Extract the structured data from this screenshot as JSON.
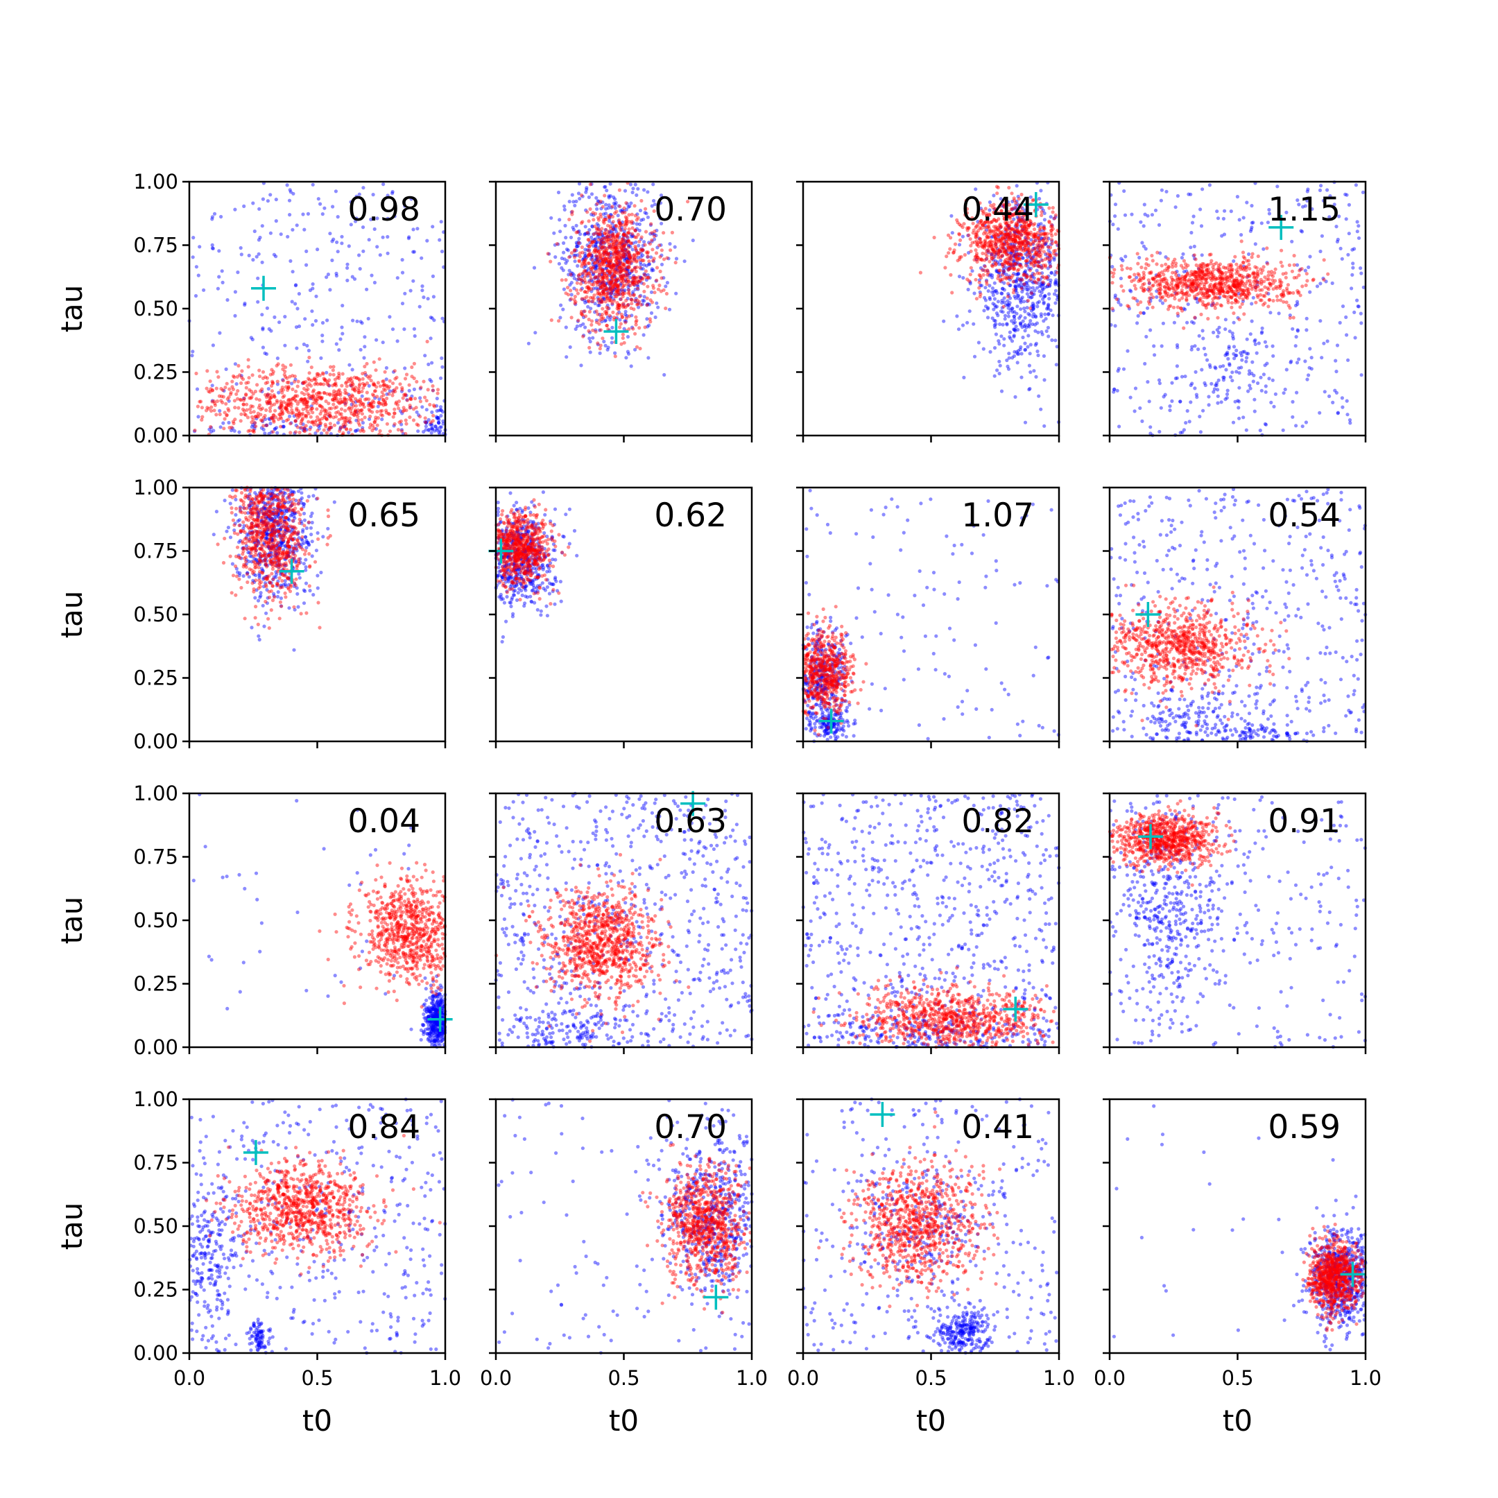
{
  "colors": {
    "series_blue": "#0000ff",
    "series_red": "#ff0000",
    "marker_cyan": "#00bfbf",
    "frame": "#000000"
  },
  "chart_data": {
    "type": "scatter",
    "layout": "4x4 grid of scatter panels with shared axes",
    "xlabel": "t0",
    "ylabel": "tau",
    "xlim": [
      0,
      1
    ],
    "ylim": [
      0,
      1
    ],
    "xticks": [
      "0.0",
      "0.5",
      "1.0"
    ],
    "yticks": [
      "0.00",
      "0.25",
      "0.50",
      "0.75",
      "1.00"
    ],
    "grid": false,
    "legend": "none",
    "annotation_position": "top-right",
    "series": [
      {
        "color": "#0000ff",
        "marker": "dot",
        "alpha": 0.4
      },
      {
        "color": "#ff0000",
        "marker": "dot",
        "alpha": 0.4
      }
    ],
    "panels": [
      {
        "annotation": "0.98",
        "truth": [
          0.29,
          0.58
        ],
        "blue": [
          {
            "cx": 0.55,
            "cy": 0.5,
            "sx": 0.3,
            "sy": 0.3,
            "n": 340,
            "uniform": true
          },
          {
            "cx": 0.97,
            "cy": 0.04,
            "sx": 0.03,
            "sy": 0.04,
            "n": 60
          },
          {
            "cx": 0.3,
            "cy": 0.03,
            "sx": 0.18,
            "sy": 0.02,
            "n": 70
          }
        ],
        "red": [
          {
            "cx": 0.5,
            "cy": 0.13,
            "sx": 0.26,
            "sy": 0.07,
            "n": 900,
            "xmin": 0.02,
            "xmax": 0.98
          }
        ]
      },
      {
        "annotation": "0.70",
        "truth": [
          0.47,
          0.41
        ],
        "blue": [
          {
            "cx": 0.45,
            "cy": 0.7,
            "sx": 0.1,
            "sy": 0.16,
            "n": 650
          }
        ],
        "red": [
          {
            "cx": 0.46,
            "cy": 0.66,
            "sx": 0.08,
            "sy": 0.12,
            "n": 850
          }
        ]
      },
      {
        "annotation": "0.44",
        "truth": [
          0.91,
          0.91
        ],
        "blue": [
          {
            "cx": 0.85,
            "cy": 0.6,
            "sx": 0.09,
            "sy": 0.16,
            "n": 650
          }
        ],
        "red": [
          {
            "cx": 0.82,
            "cy": 0.76,
            "sx": 0.1,
            "sy": 0.08,
            "n": 800
          }
        ]
      },
      {
        "annotation": "1.15",
        "truth": [
          0.67,
          0.82
        ],
        "blue": [
          {
            "cx": 0.5,
            "cy": 0.5,
            "sx": 0.3,
            "sy": 0.3,
            "n": 380,
            "uniform": true
          },
          {
            "cx": 0.5,
            "cy": 0.27,
            "sx": 0.1,
            "sy": 0.1,
            "n": 90
          }
        ],
        "red": [
          {
            "cx": 0.4,
            "cy": 0.6,
            "sx": 0.16,
            "sy": 0.05,
            "n": 800
          }
        ]
      },
      {
        "annotation": "0.65",
        "truth": [
          0.4,
          0.67
        ],
        "blue": [
          {
            "cx": 0.33,
            "cy": 0.84,
            "sx": 0.08,
            "sy": 0.14,
            "n": 650
          }
        ],
        "red": [
          {
            "cx": 0.32,
            "cy": 0.82,
            "sx": 0.07,
            "sy": 0.13,
            "n": 750
          }
        ]
      },
      {
        "annotation": "0.62",
        "truth": [
          0.02,
          0.75
        ],
        "blue": [
          {
            "cx": 0.09,
            "cy": 0.72,
            "sx": 0.07,
            "sy": 0.1,
            "n": 550
          }
        ],
        "red": [
          {
            "cx": 0.1,
            "cy": 0.76,
            "sx": 0.06,
            "sy": 0.07,
            "n": 650
          }
        ]
      },
      {
        "annotation": "1.07",
        "truth": [
          0.11,
          0.08
        ],
        "blue": [
          {
            "cx": 0.5,
            "cy": 0.45,
            "sx": 0.3,
            "sy": 0.3,
            "n": 110,
            "uniform": true
          },
          {
            "cx": 0.07,
            "cy": 0.24,
            "sx": 0.05,
            "sy": 0.1,
            "n": 330
          },
          {
            "cx": 0.11,
            "cy": 0.06,
            "sx": 0.03,
            "sy": 0.03,
            "n": 120
          }
        ],
        "red": [
          {
            "cx": 0.08,
            "cy": 0.27,
            "sx": 0.06,
            "sy": 0.08,
            "n": 600
          }
        ]
      },
      {
        "annotation": "0.54",
        "truth": [
          0.15,
          0.5
        ],
        "blue": [
          {
            "cx": 0.5,
            "cy": 0.5,
            "sx": 0.3,
            "sy": 0.3,
            "n": 420,
            "uniform": true
          },
          {
            "cx": 0.35,
            "cy": 0.09,
            "sx": 0.12,
            "sy": 0.07,
            "n": 160
          },
          {
            "cx": 0.6,
            "cy": 0.03,
            "sx": 0.08,
            "sy": 0.02,
            "n": 60
          }
        ],
        "red": [
          {
            "cx": 0.28,
            "cy": 0.38,
            "sx": 0.14,
            "sy": 0.08,
            "n": 750
          }
        ]
      },
      {
        "annotation": "0.04",
        "truth": [
          0.98,
          0.11
        ],
        "blue": [
          {
            "cx": 0.97,
            "cy": 0.1,
            "sx": 0.025,
            "sy": 0.06,
            "n": 450
          },
          {
            "cx": 0.5,
            "cy": 0.5,
            "sx": 0.3,
            "sy": 0.3,
            "n": 40,
            "uniform": true
          }
        ],
        "red": [
          {
            "cx": 0.86,
            "cy": 0.45,
            "sx": 0.1,
            "sy": 0.1,
            "n": 750
          }
        ]
      },
      {
        "annotation": "0.63",
        "truth": [
          0.77,
          0.96
        ],
        "blue": [
          {
            "cx": 0.5,
            "cy": 0.5,
            "sx": 0.3,
            "sy": 0.3,
            "n": 650,
            "uniform": true
          },
          {
            "cx": 0.3,
            "cy": 0.06,
            "sx": 0.15,
            "sy": 0.05,
            "n": 150
          }
        ],
        "red": [
          {
            "cx": 0.41,
            "cy": 0.4,
            "sx": 0.11,
            "sy": 0.11,
            "n": 850
          }
        ]
      },
      {
        "annotation": "0.82",
        "truth": [
          0.83,
          0.15
        ],
        "blue": [
          {
            "cx": 0.5,
            "cy": 0.5,
            "sx": 0.3,
            "sy": 0.3,
            "n": 650,
            "uniform": true
          },
          {
            "cx": 0.5,
            "cy": 0.05,
            "sx": 0.3,
            "sy": 0.04,
            "n": 200
          }
        ],
        "red": [
          {
            "cx": 0.6,
            "cy": 0.11,
            "sx": 0.19,
            "sy": 0.06,
            "n": 800
          }
        ]
      },
      {
        "annotation": "0.91",
        "truth": [
          0.16,
          0.83
        ],
        "blue": [
          {
            "cx": 0.5,
            "cy": 0.5,
            "sx": 0.3,
            "sy": 0.3,
            "n": 280,
            "uniform": true
          },
          {
            "cx": 0.22,
            "cy": 0.55,
            "sx": 0.11,
            "sy": 0.18,
            "n": 350
          }
        ],
        "red": [
          {
            "cx": 0.22,
            "cy": 0.82,
            "sx": 0.1,
            "sy": 0.05,
            "n": 750
          }
        ]
      },
      {
        "annotation": "0.84",
        "truth": [
          0.26,
          0.79
        ],
        "blue": [
          {
            "cx": 0.5,
            "cy": 0.5,
            "sx": 0.3,
            "sy": 0.3,
            "n": 380,
            "uniform": true
          },
          {
            "cx": 0.08,
            "cy": 0.38,
            "sx": 0.06,
            "sy": 0.15,
            "n": 200
          },
          {
            "cx": 0.27,
            "cy": 0.06,
            "sx": 0.02,
            "sy": 0.03,
            "n": 80
          }
        ],
        "red": [
          {
            "cx": 0.43,
            "cy": 0.57,
            "sx": 0.13,
            "sy": 0.09,
            "n": 800
          }
        ]
      },
      {
        "annotation": "0.70",
        "truth": [
          0.86,
          0.22
        ],
        "blue": [
          {
            "cx": 0.85,
            "cy": 0.55,
            "sx": 0.11,
            "sy": 0.17,
            "n": 550
          },
          {
            "cx": 0.5,
            "cy": 0.5,
            "sx": 0.3,
            "sy": 0.3,
            "n": 80,
            "uniform": true
          }
        ],
        "red": [
          {
            "cx": 0.82,
            "cy": 0.5,
            "sx": 0.08,
            "sy": 0.12,
            "n": 750
          }
        ]
      },
      {
        "annotation": "0.41",
        "truth": [
          0.31,
          0.94
        ],
        "blue": [
          {
            "cx": 0.5,
            "cy": 0.5,
            "sx": 0.3,
            "sy": 0.3,
            "n": 260,
            "uniform": true
          },
          {
            "cx": 0.62,
            "cy": 0.08,
            "sx": 0.05,
            "sy": 0.05,
            "n": 260
          },
          {
            "cx": 0.45,
            "cy": 0.5,
            "sx": 0.15,
            "sy": 0.14,
            "n": 200
          }
        ],
        "red": [
          {
            "cx": 0.45,
            "cy": 0.5,
            "sx": 0.12,
            "sy": 0.12,
            "n": 800
          }
        ]
      },
      {
        "annotation": "0.59",
        "truth": [
          0.95,
          0.31
        ],
        "blue": [
          {
            "cx": 0.9,
            "cy": 0.3,
            "sx": 0.06,
            "sy": 0.1,
            "n": 600
          },
          {
            "cx": 0.5,
            "cy": 0.5,
            "sx": 0.3,
            "sy": 0.3,
            "n": 25,
            "uniform": true
          }
        ],
        "red": [
          {
            "cx": 0.88,
            "cy": 0.3,
            "sx": 0.05,
            "sy": 0.07,
            "n": 750
          }
        ]
      }
    ]
  }
}
